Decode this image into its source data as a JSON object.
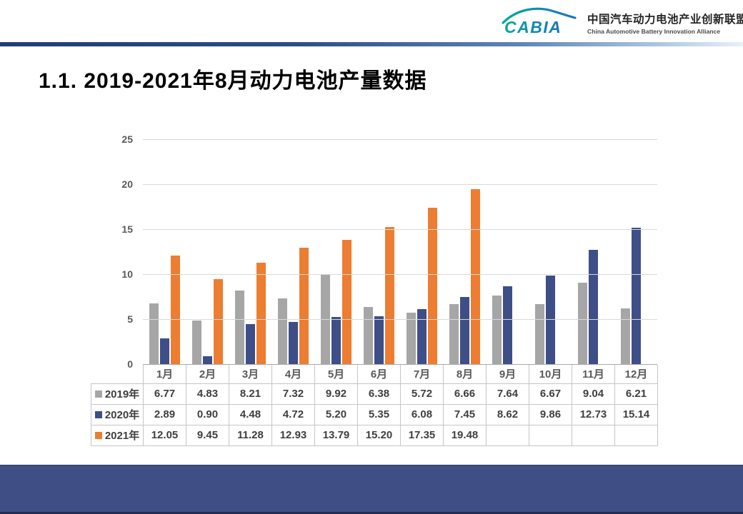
{
  "header": {
    "logo_text": "CABIA",
    "org_name_cn": "中国汽车动力电池产业创新联盟",
    "org_name_en": "China Automotive Battery Innovation Alliance"
  },
  "title": "1.1. 2019-2021年8月动力电池产量数据",
  "colors": {
    "series_2019": "#A6A6A6",
    "series_2020": "#3E4E87",
    "series_2021": "#ED7D31",
    "gridline": "#D9D9D9",
    "axis_text": "#595959",
    "footer_band": "#3F4E84",
    "logo_gradient_start": "#00A79D",
    "logo_gradient_end": "#1B75BC"
  },
  "chart_data": {
    "type": "bar",
    "title": "",
    "xlabel": "",
    "ylabel": "",
    "categories": [
      "1月",
      "2月",
      "3月",
      "4月",
      "5月",
      "6月",
      "7月",
      "8月",
      "9月",
      "10月",
      "11月",
      "12月"
    ],
    "series": [
      {
        "name": "2019年",
        "color": "#A6A6A6",
        "values": [
          6.77,
          4.83,
          8.21,
          7.32,
          9.92,
          6.38,
          5.72,
          6.66,
          7.64,
          6.67,
          9.04,
          6.21
        ]
      },
      {
        "name": "2020年",
        "color": "#3E4E87",
        "values": [
          2.89,
          0.9,
          4.48,
          4.72,
          5.2,
          5.35,
          6.08,
          7.45,
          8.62,
          9.86,
          12.73,
          15.14
        ]
      },
      {
        "name": "2021年",
        "color": "#ED7D31",
        "values": [
          12.05,
          9.45,
          11.28,
          12.93,
          13.79,
          15.2,
          17.35,
          19.48,
          null,
          null,
          null,
          null
        ]
      }
    ],
    "ylim": [
      0,
      25
    ],
    "yticks": [
      0,
      5,
      10,
      15,
      20,
      25
    ],
    "grid": true,
    "legend_position": "data-table-row-headers",
    "data_table": true
  }
}
